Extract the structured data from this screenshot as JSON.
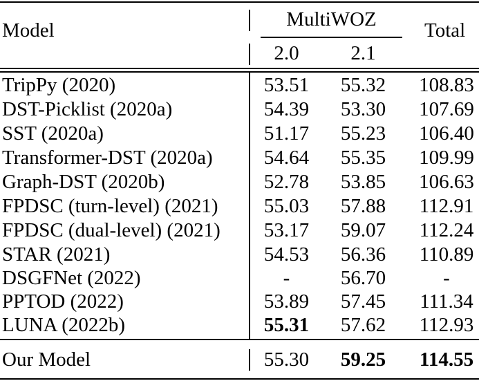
{
  "header": {
    "model_label": "Model",
    "group_label": "MultiWOZ",
    "sub_2_0": "2.0",
    "sub_2_1": "2.1",
    "total_label": "Total"
  },
  "rows": [
    {
      "model": "TripPy (2020)",
      "v20": "53.51",
      "v21": "55.32",
      "total": "108.83"
    },
    {
      "model": "DST-Picklist (2020a)",
      "v20": "54.39",
      "v21": "53.30",
      "total": "107.69"
    },
    {
      "model": "SST (2020a)",
      "v20": "51.17",
      "v21": "55.23",
      "total": "106.40"
    },
    {
      "model": "Transformer-DST (2020a)",
      "v20": "54.64",
      "v21": "55.35",
      "total": "109.99"
    },
    {
      "model": "Graph-DST (2020b)",
      "v20": "52.78",
      "v21": "53.85",
      "total": "106.63"
    },
    {
      "model": "FPDSC (turn-level) (2021)",
      "v20": "55.03",
      "v21": "57.88",
      "total": "112.91"
    },
    {
      "model": "FPDSC (dual-level) (2021)",
      "v20": "53.17",
      "v21": "59.07",
      "total": "112.24"
    },
    {
      "model": "STAR (2021)",
      "v20": "54.53",
      "v21": "56.36",
      "total": "110.89"
    },
    {
      "model": "DSGFNet (2022)",
      "v20": "-",
      "v21": "56.70",
      "total": "-"
    },
    {
      "model": "PPTOD (2022)",
      "v20": "53.89",
      "v21": "57.45",
      "total": "111.34"
    },
    {
      "model": "LUNA (2022b)",
      "v20": "55.31",
      "v21": "57.62",
      "total": "112.93"
    }
  ],
  "final_row": {
    "model": "Our Model",
    "v20": "55.30",
    "v21": "59.25",
    "total": "114.55"
  }
}
